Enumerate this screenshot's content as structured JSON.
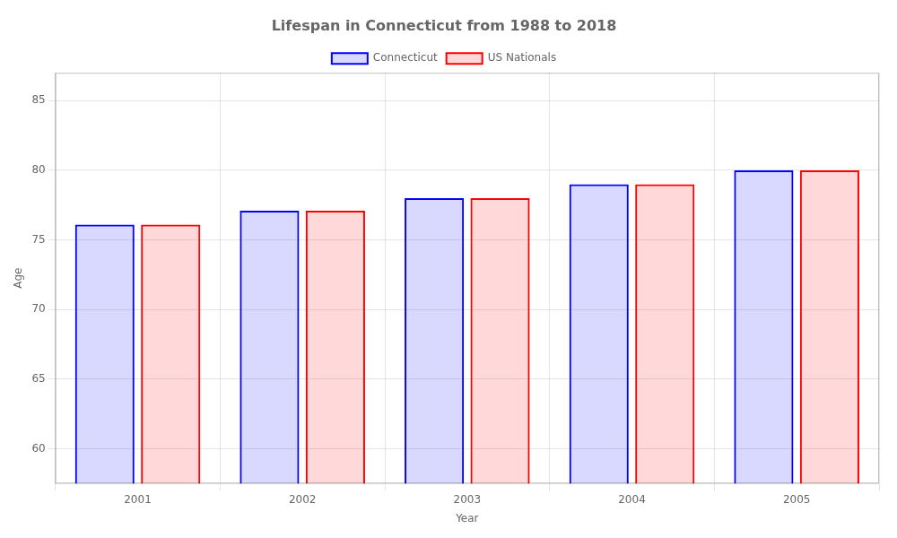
{
  "chart_data": {
    "type": "bar",
    "title": "Lifespan in Connecticut from 1988 to 2018",
    "x_label": "Year",
    "y_label": "Age",
    "categories": [
      "2001",
      "2002",
      "2003",
      "2004",
      "2005"
    ],
    "series": [
      {
        "name": "Connecticut",
        "color": "#0000ff",
        "values": [
          76.1,
          77.1,
          78.0,
          79.0,
          80.0
        ]
      },
      {
        "name": "US Nationals",
        "color": "#ff0000",
        "values": [
          76.1,
          77.1,
          78.0,
          79.0,
          80.0
        ]
      }
    ],
    "ylim": [
      57.5,
      87
    ],
    "yticks": [
      60,
      65,
      70,
      75,
      80,
      85
    ],
    "grid": true,
    "legend": "top"
  }
}
